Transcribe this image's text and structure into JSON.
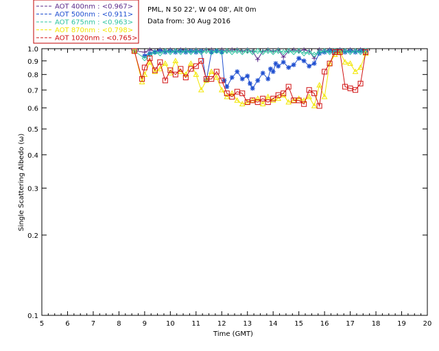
{
  "info": {
    "line1": "PML, N 50 22', W 04 08', Alt 0m",
    "line2": "Data from: 30 Aug 2016"
  },
  "chart_data": {
    "type": "line",
    "xlabel": "Time (GMT)",
    "ylabel": "Single Scattering Albedo (ω)",
    "xlim": [
      5,
      20
    ],
    "ylim": [
      0.1,
      1.0
    ],
    "y_scale": "log",
    "x_ticks": [
      "5",
      "6",
      "7",
      "8",
      "9",
      "10",
      "11",
      "12",
      "13",
      "14",
      "15",
      "16",
      "17",
      "18",
      "19",
      "20"
    ],
    "y_ticks": [
      "0.1",
      "0.2",
      "0.3",
      "0.4",
      "0.5",
      "0.6",
      "0.7",
      "0.8",
      "0.9",
      "1.0"
    ],
    "legend_position": "top-left, outside",
    "series": [
      {
        "name": "AOT  400nm : <0.967>",
        "color": "#5a2a8a",
        "marker": "plus",
        "x": [
          8.6,
          9.0,
          9.2,
          9.4,
          9.6,
          9.8,
          10.0,
          10.2,
          10.4,
          10.6,
          10.8,
          11.0,
          11.2,
          11.4,
          11.6,
          11.8,
          12.0,
          12.2,
          12.4,
          12.6,
          12.8,
          13.0,
          13.2,
          13.4,
          13.6,
          13.8,
          14.0,
          14.2,
          14.4,
          14.6,
          14.8,
          15.0,
          15.2,
          15.4,
          15.6,
          15.8,
          16.0,
          16.2,
          16.4,
          16.6,
          16.8,
          17.0,
          17.2,
          17.4,
          17.6
        ],
        "values": [
          0.98,
          0.97,
          0.99,
          0.98,
          0.99,
          0.98,
          0.99,
          0.98,
          0.99,
          0.99,
          0.98,
          0.99,
          0.98,
          0.99,
          0.99,
          0.98,
          0.99,
          0.98,
          0.99,
          0.99,
          0.98,
          0.99,
          0.98,
          0.91,
          0.98,
          0.99,
          0.98,
          0.99,
          0.93,
          0.98,
          0.99,
          0.98,
          0.99,
          0.98,
          0.92,
          0.99,
          0.98,
          0.99,
          0.98,
          0.99,
          0.98,
          0.99,
          0.98,
          0.99,
          0.98
        ]
      },
      {
        "name": "AOT  500nm : <0.911>",
        "color": "#1f4fd0",
        "marker": "asterisk",
        "x": [
          9.0,
          9.2,
          9.4,
          9.6,
          9.8,
          10.0,
          10.2,
          10.4,
          10.6,
          10.8,
          11.0,
          11.2,
          11.4,
          11.6,
          11.8,
          12.0,
          12.1,
          12.2,
          12.4,
          12.6,
          12.8,
          13.0,
          13.1,
          13.2,
          13.4,
          13.6,
          13.8,
          13.9,
          14.0,
          14.1,
          14.2,
          14.4,
          14.6,
          14.8,
          15.0,
          15.2,
          15.4,
          15.6,
          15.8,
          16.0,
          16.2,
          16.4,
          16.6,
          16.8,
          17.0,
          17.2,
          17.4,
          17.6
        ],
        "values": [
          0.94,
          0.96,
          0.97,
          0.98,
          0.97,
          0.98,
          0.97,
          0.98,
          0.97,
          0.98,
          0.97,
          0.98,
          0.76,
          0.97,
          0.98,
          0.97,
          0.76,
          0.72,
          0.78,
          0.82,
          0.77,
          0.79,
          0.74,
          0.71,
          0.76,
          0.81,
          0.77,
          0.84,
          0.82,
          0.88,
          0.86,
          0.89,
          0.85,
          0.87,
          0.92,
          0.9,
          0.86,
          0.88,
          0.96,
          0.97,
          0.98,
          0.97,
          0.98,
          0.97,
          0.98,
          0.97,
          0.98,
          0.97
        ]
      },
      {
        "name": "AOT  675nm : <0.963>",
        "color": "#2ec4a0",
        "marker": "diamond",
        "x": [
          8.6,
          9.0,
          9.2,
          9.4,
          9.6,
          9.8,
          10.0,
          10.2,
          10.4,
          10.6,
          10.8,
          11.0,
          11.2,
          11.4,
          11.6,
          11.8,
          12.0,
          12.2,
          12.4,
          12.6,
          12.8,
          13.0,
          13.2,
          13.4,
          13.6,
          13.8,
          14.0,
          14.2,
          14.4,
          14.6,
          14.8,
          15.0,
          15.2,
          15.4,
          15.6,
          15.8,
          16.0,
          16.2,
          16.4,
          16.6,
          16.8,
          17.0,
          17.2,
          17.4,
          17.6
        ],
        "values": [
          0.98,
          0.92,
          0.95,
          0.97,
          0.96,
          0.98,
          0.97,
          0.98,
          0.97,
          0.98,
          0.97,
          0.98,
          0.97,
          0.98,
          0.97,
          0.98,
          0.97,
          0.98,
          0.97,
          0.98,
          0.97,
          0.98,
          0.97,
          0.98,
          0.97,
          0.98,
          0.97,
          0.98,
          0.97,
          0.98,
          0.97,
          0.98,
          0.96,
          0.97,
          0.95,
          0.97,
          0.98,
          0.97,
          0.98,
          0.97,
          0.98,
          0.97,
          0.98,
          0.97,
          0.98
        ]
      },
      {
        "name": "AOT  870nm : <0.798>",
        "color": "#f2e600",
        "marker": "triangle",
        "x": [
          8.6,
          8.9,
          9.0,
          9.2,
          9.4,
          9.6,
          9.8,
          10.0,
          10.2,
          10.4,
          10.6,
          10.8,
          11.0,
          11.2,
          11.4,
          11.6,
          11.8,
          12.0,
          12.2,
          12.4,
          12.6,
          12.8,
          13.0,
          13.2,
          13.4,
          13.6,
          13.8,
          14.0,
          14.2,
          14.4,
          14.6,
          14.8,
          15.0,
          15.2,
          15.4,
          15.6,
          15.8,
          16.0,
          16.2,
          16.4,
          16.6,
          16.8,
          17.0,
          17.2,
          17.4,
          17.6
        ],
        "values": [
          0.98,
          0.75,
          0.8,
          0.89,
          0.82,
          0.84,
          0.88,
          0.81,
          0.9,
          0.82,
          0.8,
          0.88,
          0.8,
          0.7,
          0.76,
          0.82,
          0.78,
          0.7,
          0.66,
          0.68,
          0.64,
          0.62,
          0.63,
          0.64,
          0.65,
          0.62,
          0.66,
          0.64,
          0.65,
          0.67,
          0.63,
          0.64,
          0.65,
          0.64,
          0.66,
          0.61,
          0.73,
          0.66,
          0.88,
          0.95,
          0.97,
          0.89,
          0.88,
          0.82,
          0.85,
          0.96
        ]
      },
      {
        "name": "AOT 1020nm : <0.765>",
        "color": "#d01010",
        "marker": "square",
        "x": [
          8.6,
          8.9,
          9.0,
          9.2,
          9.4,
          9.6,
          9.8,
          10.0,
          10.2,
          10.4,
          10.6,
          10.8,
          11.0,
          11.2,
          11.4,
          11.6,
          11.8,
          12.0,
          12.2,
          12.4,
          12.6,
          12.8,
          13.0,
          13.2,
          13.4,
          13.6,
          13.8,
          14.0,
          14.2,
          14.4,
          14.6,
          14.8,
          15.0,
          15.2,
          15.4,
          15.6,
          15.8,
          16.0,
          16.2,
          16.4,
          16.6,
          16.8,
          17.0,
          17.2,
          17.4,
          17.6
        ],
        "values": [
          0.98,
          0.77,
          0.85,
          0.92,
          0.83,
          0.89,
          0.76,
          0.83,
          0.8,
          0.84,
          0.78,
          0.84,
          0.86,
          0.9,
          0.77,
          0.77,
          0.82,
          0.76,
          0.68,
          0.66,
          0.69,
          0.68,
          0.63,
          0.64,
          0.63,
          0.65,
          0.63,
          0.65,
          0.67,
          0.68,
          0.72,
          0.64,
          0.64,
          0.62,
          0.7,
          0.68,
          0.61,
          0.82,
          0.88,
          0.97,
          0.97,
          0.72,
          0.71,
          0.7,
          0.74,
          0.97
        ]
      }
    ]
  }
}
